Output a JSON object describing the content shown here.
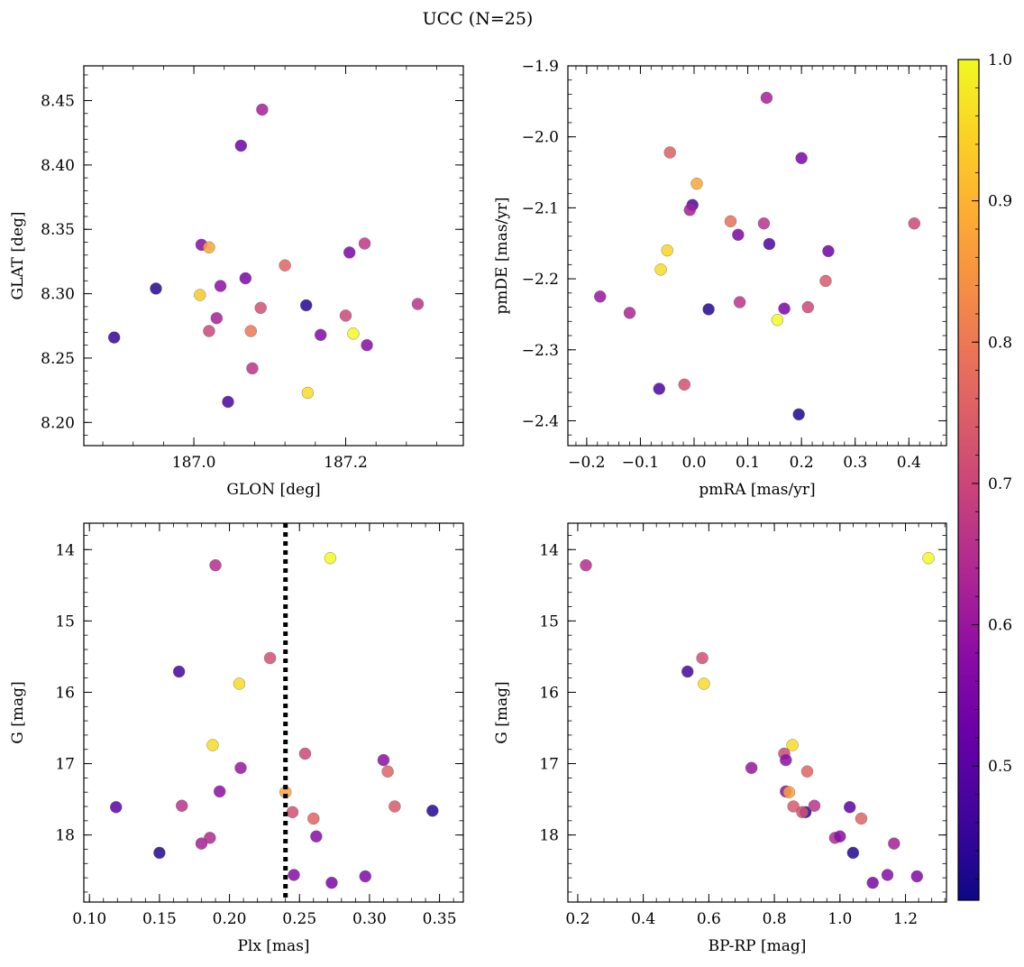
{
  "figure": {
    "title": "UCC (N=25)"
  },
  "colorbar": {
    "cmap": "plasma",
    "min": 0.405,
    "max": 1.0,
    "ticks": [
      0.5,
      0.6,
      0.7,
      0.8,
      0.9,
      1.0
    ],
    "tick_labels": [
      "0.5",
      "0.6",
      "0.7",
      "0.8",
      "0.9",
      "1.0"
    ]
  },
  "chart_data": [
    {
      "type": "scatter",
      "id": "glon-glat",
      "title": "",
      "xlabel": "GLON [deg]",
      "ylabel": "GLAT [deg]",
      "xlim": [
        186.855,
        187.355
      ],
      "ylim": [
        8.182,
        8.477
      ],
      "xticks": [
        187.0,
        187.2
      ],
      "xtick_labels": [
        "187.0",
        "187.2"
      ],
      "yticks": [
        8.2,
        8.25,
        8.3,
        8.35,
        8.4,
        8.45
      ],
      "ytick_labels": [
        "8.20",
        "8.25",
        "8.30",
        "8.35",
        "8.40",
        "8.45"
      ],
      "y_inverted": false,
      "points": [
        {
          "x": 186.895,
          "y": 8.266,
          "c": 0.45
        },
        {
          "x": 186.95,
          "y": 8.304,
          "c": 0.43
        },
        {
          "x": 187.045,
          "y": 8.216,
          "c": 0.48
        },
        {
          "x": 187.062,
          "y": 8.415,
          "c": 0.53
        },
        {
          "x": 187.09,
          "y": 8.443,
          "c": 0.62
        },
        {
          "x": 187.01,
          "y": 8.338,
          "c": 0.57
        },
        {
          "x": 187.02,
          "y": 8.336,
          "c": 0.88
        },
        {
          "x": 187.008,
          "y": 8.299,
          "c": 0.93
        },
        {
          "x": 187.035,
          "y": 8.306,
          "c": 0.58
        },
        {
          "x": 187.03,
          "y": 8.281,
          "c": 0.62
        },
        {
          "x": 187.02,
          "y": 8.271,
          "c": 0.7
        },
        {
          "x": 187.068,
          "y": 8.312,
          "c": 0.55
        },
        {
          "x": 187.088,
          "y": 8.289,
          "c": 0.72
        },
        {
          "x": 187.075,
          "y": 8.271,
          "c": 0.8
        },
        {
          "x": 187.077,
          "y": 8.242,
          "c": 0.66
        },
        {
          "x": 187.12,
          "y": 8.322,
          "c": 0.76
        },
        {
          "x": 187.148,
          "y": 8.291,
          "c": 0.43
        },
        {
          "x": 187.15,
          "y": 8.223,
          "c": 0.96
        },
        {
          "x": 187.167,
          "y": 8.268,
          "c": 0.56
        },
        {
          "x": 187.205,
          "y": 8.332,
          "c": 0.55
        },
        {
          "x": 187.225,
          "y": 8.339,
          "c": 0.67
        },
        {
          "x": 187.2,
          "y": 8.283,
          "c": 0.7
        },
        {
          "x": 187.21,
          "y": 8.269,
          "c": 1.0
        },
        {
          "x": 187.228,
          "y": 8.26,
          "c": 0.57
        },
        {
          "x": 187.295,
          "y": 8.292,
          "c": 0.66
        }
      ]
    },
    {
      "type": "scatter",
      "id": "pmra-pmde",
      "title": "",
      "xlabel": "pmRA [mas/yr]",
      "ylabel": "pmDE [mas/yr]",
      "xlim": [
        -0.235,
        0.47
      ],
      "ylim": [
        -2.435,
        -1.9
      ],
      "xticks": [
        -0.2,
        -0.1,
        0.0,
        0.1,
        0.2,
        0.3,
        0.4
      ],
      "xtick_labels": [
        "−0.2",
        "−0.1",
        "0.0",
        "0.1",
        "0.2",
        "0.3",
        "0.4"
      ],
      "yticks": [
        -2.4,
        -2.3,
        -2.2,
        -2.1,
        -2.0,
        -1.9
      ],
      "ytick_labels": [
        "−2.4",
        "−2.3",
        "−2.2",
        "−2.1",
        "−2.0",
        "−1.9"
      ],
      "y_inverted": false,
      "points": [
        {
          "x": 0.135,
          "y": -1.945,
          "c": 0.62
        },
        {
          "x": 0.2,
          "y": -2.03,
          "c": 0.55
        },
        {
          "x": -0.045,
          "y": -2.022,
          "c": 0.75
        },
        {
          "x": 0.005,
          "y": -2.066,
          "c": 0.88
        },
        {
          "x": -0.003,
          "y": -2.096,
          "c": 0.48
        },
        {
          "x": -0.008,
          "y": -2.103,
          "c": 0.62
        },
        {
          "x": 0.068,
          "y": -2.119,
          "c": 0.78
        },
        {
          "x": 0.13,
          "y": -2.122,
          "c": 0.66
        },
        {
          "x": 0.41,
          "y": -2.122,
          "c": 0.7
        },
        {
          "x": 0.082,
          "y": -2.138,
          "c": 0.55
        },
        {
          "x": 0.14,
          "y": -2.151,
          "c": 0.48
        },
        {
          "x": -0.05,
          "y": -2.16,
          "c": 0.95
        },
        {
          "x": 0.25,
          "y": -2.161,
          "c": 0.53
        },
        {
          "x": -0.062,
          "y": -2.187,
          "c": 0.96
        },
        {
          "x": 0.245,
          "y": -2.203,
          "c": 0.74
        },
        {
          "x": -0.175,
          "y": -2.225,
          "c": 0.6
        },
        {
          "x": 0.085,
          "y": -2.233,
          "c": 0.66
        },
        {
          "x": 0.212,
          "y": -2.24,
          "c": 0.7
        },
        {
          "x": 0.168,
          "y": -2.242,
          "c": 0.55
        },
        {
          "x": 0.027,
          "y": -2.243,
          "c": 0.43
        },
        {
          "x": -0.12,
          "y": -2.248,
          "c": 0.63
        },
        {
          "x": 0.155,
          "y": -2.258,
          "c": 1.0
        },
        {
          "x": -0.065,
          "y": -2.355,
          "c": 0.48
        },
        {
          "x": -0.018,
          "y": -2.349,
          "c": 0.72
        },
        {
          "x": 0.195,
          "y": -2.391,
          "c": 0.42
        }
      ]
    },
    {
      "type": "scatter",
      "id": "plx-g",
      "title": "",
      "xlabel": "Plx [mas]",
      "ylabel": "G [mag]",
      "xlim": [
        0.096,
        0.367
      ],
      "ylim": [
        18.94,
        13.63
      ],
      "xticks": [
        0.1,
        0.15,
        0.2,
        0.25,
        0.3,
        0.35
      ],
      "xtick_labels": [
        "0.10",
        "0.15",
        "0.20",
        "0.25",
        "0.30",
        "0.35"
      ],
      "yticks": [
        14,
        15,
        16,
        17,
        18
      ],
      "ytick_labels": [
        "14",
        "15",
        "16",
        "17",
        "18"
      ],
      "y_inverted": true,
      "vline": {
        "x": 0.24,
        "style": "dotted",
        "color": "#000000"
      },
      "points": [
        {
          "x": 0.19,
          "y": 14.22,
          "c": 0.65
        },
        {
          "x": 0.272,
          "y": 14.12,
          "c": 1.0
        },
        {
          "x": 0.164,
          "y": 15.71,
          "c": 0.47
        },
        {
          "x": 0.229,
          "y": 15.52,
          "c": 0.72
        },
        {
          "x": 0.207,
          "y": 15.88,
          "c": 0.96
        },
        {
          "x": 0.188,
          "y": 16.74,
          "c": 0.96
        },
        {
          "x": 0.208,
          "y": 17.06,
          "c": 0.6
        },
        {
          "x": 0.254,
          "y": 16.86,
          "c": 0.7
        },
        {
          "x": 0.31,
          "y": 16.95,
          "c": 0.58
        },
        {
          "x": 0.313,
          "y": 17.11,
          "c": 0.76
        },
        {
          "x": 0.119,
          "y": 17.61,
          "c": 0.5
        },
        {
          "x": 0.166,
          "y": 17.59,
          "c": 0.66
        },
        {
          "x": 0.193,
          "y": 17.39,
          "c": 0.58
        },
        {
          "x": 0.24,
          "y": 17.4,
          "c": 0.88
        },
        {
          "x": 0.245,
          "y": 17.68,
          "c": 0.72
        },
        {
          "x": 0.26,
          "y": 17.77,
          "c": 0.76
        },
        {
          "x": 0.318,
          "y": 17.6,
          "c": 0.74
        },
        {
          "x": 0.345,
          "y": 17.66,
          "c": 0.43
        },
        {
          "x": 0.15,
          "y": 18.25,
          "c": 0.43
        },
        {
          "x": 0.18,
          "y": 18.12,
          "c": 0.62
        },
        {
          "x": 0.186,
          "y": 18.04,
          "c": 0.64
        },
        {
          "x": 0.262,
          "y": 18.02,
          "c": 0.57
        },
        {
          "x": 0.246,
          "y": 18.56,
          "c": 0.57
        },
        {
          "x": 0.273,
          "y": 18.67,
          "c": 0.55
        },
        {
          "x": 0.297,
          "y": 18.58,
          "c": 0.56
        }
      ]
    },
    {
      "type": "scatter",
      "id": "bprp-g",
      "title": "",
      "xlabel": "BP-RP [mag]",
      "ylabel": "G [mag]",
      "xlim": [
        0.17,
        1.325
      ],
      "ylim": [
        18.94,
        13.63
      ],
      "xticks": [
        0.2,
        0.4,
        0.6,
        0.8,
        1.0,
        1.2
      ],
      "xtick_labels": [
        "0.2",
        "0.4",
        "0.6",
        "0.8",
        "1.0",
        "1.2"
      ],
      "yticks": [
        14,
        15,
        16,
        17,
        18
      ],
      "ytick_labels": [
        "14",
        "15",
        "16",
        "17",
        "18"
      ],
      "y_inverted": true,
      "points": [
        {
          "x": 0.225,
          "y": 14.22,
          "c": 0.65
        },
        {
          "x": 1.27,
          "y": 14.12,
          "c": 1.0
        },
        {
          "x": 0.535,
          "y": 15.71,
          "c": 0.47
        },
        {
          "x": 0.58,
          "y": 15.52,
          "c": 0.72
        },
        {
          "x": 0.585,
          "y": 15.88,
          "c": 0.96
        },
        {
          "x": 0.73,
          "y": 17.06,
          "c": 0.6
        },
        {
          "x": 0.855,
          "y": 16.74,
          "c": 0.96
        },
        {
          "x": 0.83,
          "y": 16.86,
          "c": 0.7
        },
        {
          "x": 0.835,
          "y": 16.95,
          "c": 0.58
        },
        {
          "x": 0.9,
          "y": 17.11,
          "c": 0.76
        },
        {
          "x": 0.835,
          "y": 17.39,
          "c": 0.58
        },
        {
          "x": 0.845,
          "y": 17.4,
          "c": 0.88
        },
        {
          "x": 0.858,
          "y": 17.6,
          "c": 0.74
        },
        {
          "x": 0.895,
          "y": 17.68,
          "c": 0.43
        },
        {
          "x": 0.885,
          "y": 17.68,
          "c": 0.72
        },
        {
          "x": 0.922,
          "y": 17.59,
          "c": 0.66
        },
        {
          "x": 1.03,
          "y": 17.61,
          "c": 0.5
        },
        {
          "x": 1.065,
          "y": 17.77,
          "c": 0.76
        },
        {
          "x": 0.985,
          "y": 18.04,
          "c": 0.64
        },
        {
          "x": 1.0,
          "y": 18.02,
          "c": 0.57
        },
        {
          "x": 1.04,
          "y": 18.25,
          "c": 0.43
        },
        {
          "x": 1.165,
          "y": 18.12,
          "c": 0.62
        },
        {
          "x": 1.1,
          "y": 18.67,
          "c": 0.55
        },
        {
          "x": 1.145,
          "y": 18.56,
          "c": 0.57
        },
        {
          "x": 1.235,
          "y": 18.58,
          "c": 0.56
        }
      ]
    }
  ]
}
